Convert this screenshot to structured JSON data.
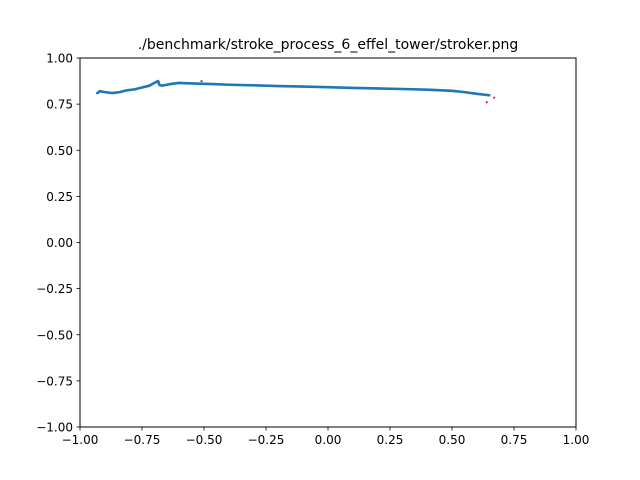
{
  "chart_data": {
    "type": "scatter",
    "title": "./benchmark/stroke_process_6_effel_tower/stroker.png",
    "xlabel": "",
    "ylabel": "",
    "xlim": [
      -1.0,
      1.0
    ],
    "ylim": [
      -1.0,
      1.0
    ],
    "grid": false,
    "legend": "none",
    "x_ticks": [
      {
        "value": -1.0,
        "label": "−1.00"
      },
      {
        "value": -0.75,
        "label": "−0.75"
      },
      {
        "value": -0.5,
        "label": "−0.50"
      },
      {
        "value": -0.25,
        "label": "−0.25"
      },
      {
        "value": 0.0,
        "label": "0.00"
      },
      {
        "value": 0.25,
        "label": "0.25"
      },
      {
        "value": 0.5,
        "label": "0.50"
      },
      {
        "value": 0.75,
        "label": "0.75"
      },
      {
        "value": 1.0,
        "label": "1.00"
      }
    ],
    "y_ticks": [
      {
        "value": 1.0,
        "label": "1.00"
      },
      {
        "value": 0.75,
        "label": "0.75"
      },
      {
        "value": 0.5,
        "label": "0.50"
      },
      {
        "value": 0.25,
        "label": "0.25"
      },
      {
        "value": 0.0,
        "label": "0.00"
      },
      {
        "value": -0.25,
        "label": "−0.25"
      },
      {
        "value": -0.5,
        "label": "−0.50"
      },
      {
        "value": -0.75,
        "label": "−0.75"
      },
      {
        "value": -1.0,
        "label": "−1.00"
      }
    ],
    "series": [
      {
        "color": "#1f77b4",
        "x": [
          -0.93,
          -0.92,
          -0.9,
          -0.87,
          -0.84,
          -0.81,
          -0.78,
          -0.75,
          -0.72,
          -0.7,
          -0.685,
          -0.68,
          -0.67,
          -0.65,
          -0.63,
          -0.6,
          -0.55,
          -0.5,
          -0.45,
          -0.4,
          -0.3,
          -0.2,
          -0.1,
          0.0,
          0.1,
          0.2,
          0.3,
          0.4,
          0.5,
          0.55,
          0.6,
          0.65
        ],
        "y": [
          0.81,
          0.82,
          0.815,
          0.81,
          0.815,
          0.825,
          0.83,
          0.84,
          0.85,
          0.865,
          0.875,
          0.855,
          0.85,
          0.855,
          0.86,
          0.865,
          0.862,
          0.86,
          0.858,
          0.855,
          0.852,
          0.848,
          0.845,
          0.842,
          0.838,
          0.835,
          0.832,
          0.828,
          0.822,
          0.815,
          0.806,
          0.798
        ]
      },
      {
        "color": "#d62728",
        "x": [
          -0.51,
          0.64,
          0.67
        ],
        "y": [
          0.875,
          0.76,
          0.785
        ]
      }
    ]
  }
}
